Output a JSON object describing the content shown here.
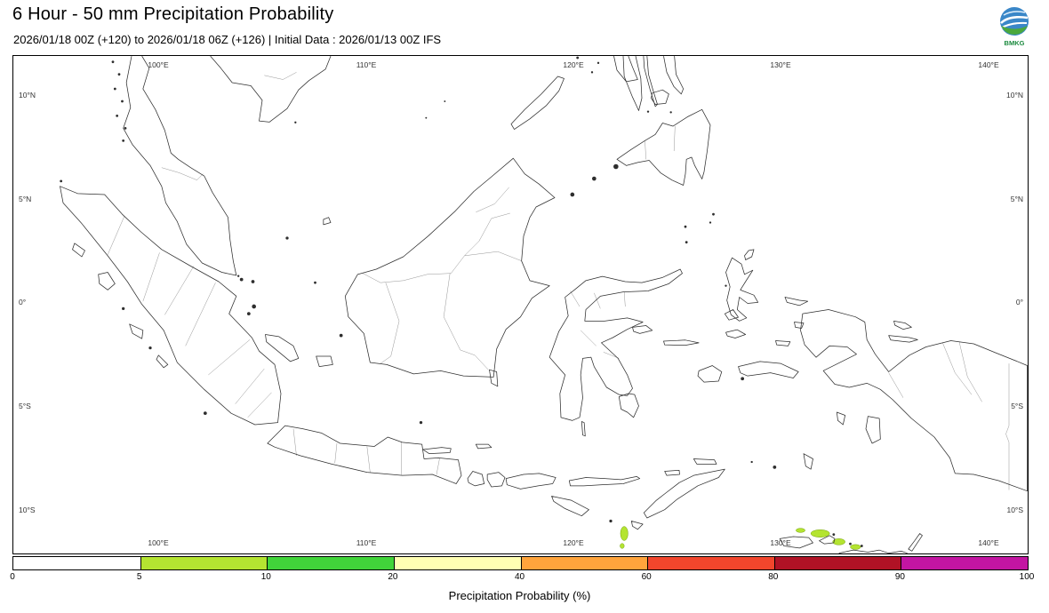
{
  "header": {
    "title": "6 Hour - 50 mm Precipitation Probability",
    "subtitle": "2026/01/18 00Z (+120) to 2026/01/18 06Z (+126) | Initial Data : 2026/01/13 00Z IFS",
    "logo_text": "BMKG"
  },
  "map": {
    "lon_ticks": [
      "100°E",
      "110°E",
      "120°E",
      "130°E",
      "140°E"
    ],
    "lat_ticks": [
      "10°N",
      "5°N",
      "0°",
      "5°S",
      "10°S"
    ],
    "extent": {
      "lon_min": 93.0,
      "lon_max": 141.9,
      "lat_min": -12.11,
      "lat_max": 11.89
    }
  },
  "colorbar": {
    "label": "Precipitation Probability (%)",
    "tick_labels": [
      "0",
      "5",
      "10",
      "20",
      "40",
      "60",
      "80",
      "90",
      "100"
    ],
    "segments": [
      {
        "range": "0-5",
        "color": "#ffffff"
      },
      {
        "range": "5-10",
        "color": "#b4e431"
      },
      {
        "range": "10-20",
        "color": "#41d43a"
      },
      {
        "range": "20-40",
        "color": "#ffffb3"
      },
      {
        "range": "40-60",
        "color": "#ffa43c"
      },
      {
        "range": "60-80",
        "color": "#f2462c"
      },
      {
        "range": "80-90",
        "color": "#b01225"
      },
      {
        "range": "90-100",
        "color": "#c315a2"
      }
    ]
  },
  "precip_areas": [
    {
      "lon": 122.45,
      "lat": -11.15,
      "rx": 0.18,
      "ry": 0.34,
      "category": "5-10",
      "color": "#b4e431"
    },
    {
      "lon": 122.35,
      "lat": -11.75,
      "rx": 0.1,
      "ry": 0.12,
      "category": "5-10",
      "color": "#b4e431"
    },
    {
      "lon": 130.95,
      "lat": -11.0,
      "rx": 0.22,
      "ry": 0.1,
      "category": "5-10",
      "color": "#b4e431"
    },
    {
      "lon": 131.9,
      "lat": -11.15,
      "rx": 0.45,
      "ry": 0.18,
      "category": "5-10",
      "color": "#b4e431"
    },
    {
      "lon": 132.8,
      "lat": -11.55,
      "rx": 0.3,
      "ry": 0.15,
      "category": "5-10",
      "color": "#b4e431"
    },
    {
      "lon": 133.6,
      "lat": -11.8,
      "rx": 0.25,
      "ry": 0.12,
      "category": "5-10",
      "color": "#b4e431"
    }
  ]
}
